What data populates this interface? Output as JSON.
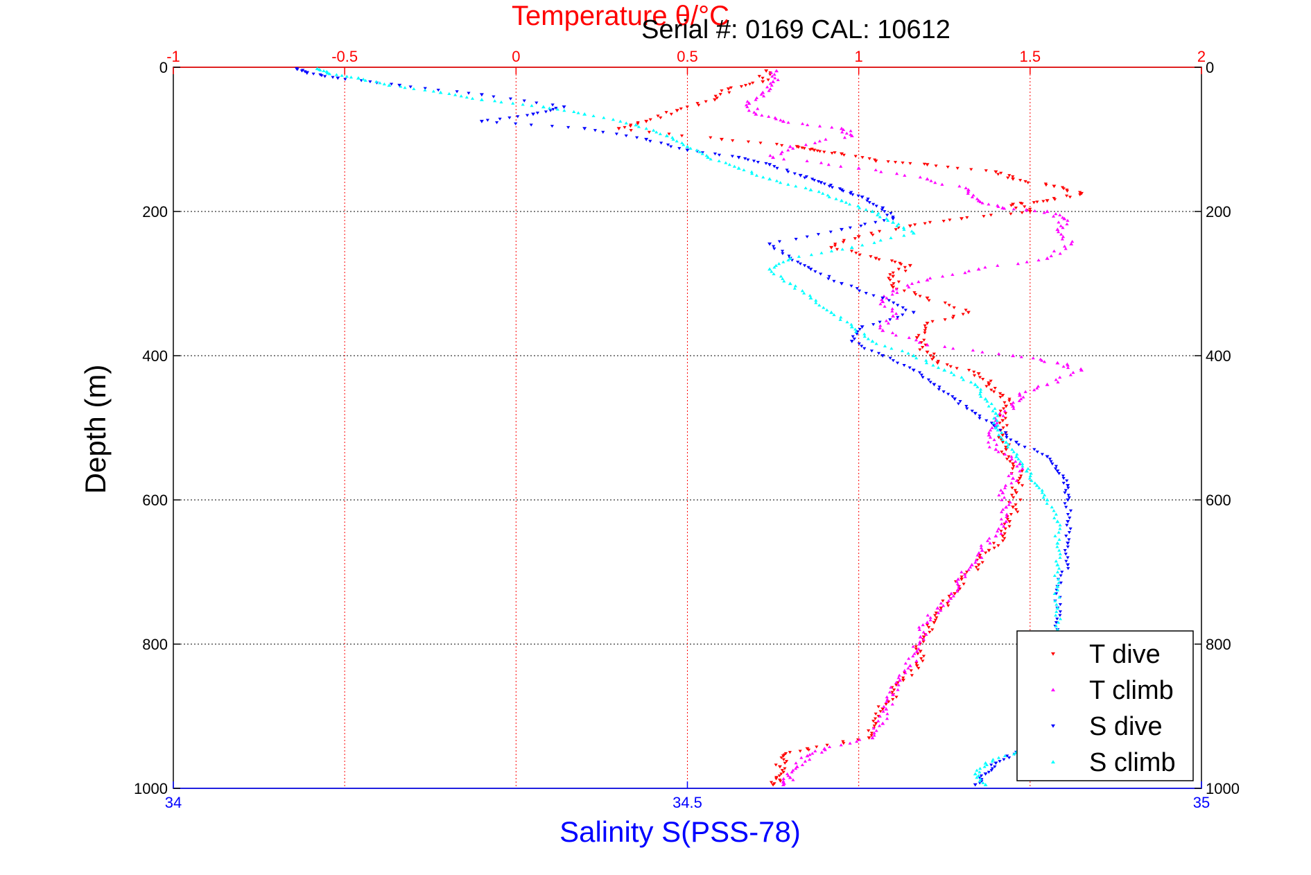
{
  "chart_data": {
    "type": "scatter",
    "title": "Temperature θ/°C",
    "subtitle": "Serial #: 0169 CAL: 10612",
    "ylabel": "Depth (m)",
    "x_top_label": "Temperature θ/°C",
    "x_bottom_label": "Salinity S(PSS-78)",
    "ylim": [
      0,
      1000
    ],
    "y_reversed": true,
    "y_ticks": [
      "0",
      "200",
      "400",
      "600",
      "800",
      "1000"
    ],
    "x_top_lim": [
      -1,
      2
    ],
    "x_top_ticks": [
      "-1",
      "-0.5",
      "0",
      "0.5",
      "1",
      "1.5",
      "2"
    ],
    "x_bottom_lim": [
      34,
      35
    ],
    "x_bottom_ticks": [
      "34",
      "34.5",
      "35"
    ],
    "grid": true,
    "legend_position": "bottom-right",
    "colors": {
      "top_axis": "#ff0000",
      "bottom_axis": "#0000ff",
      "grid": "#000000"
    },
    "series": [
      {
        "name": "T dive",
        "axis": "temperature",
        "color": "#ff0000",
        "marker": "triangle-down",
        "points": [
          [
            0.73,
            5
          ],
          [
            0.72,
            20
          ],
          [
            0.62,
            30
          ],
          [
            0.58,
            45
          ],
          [
            0.47,
            60
          ],
          [
            0.38,
            75
          ],
          [
            0.3,
            85
          ],
          [
            0.6,
            100
          ],
          [
            0.82,
            110
          ],
          [
            0.87,
            115
          ],
          [
            0.95,
            120
          ],
          [
            1.05,
            130
          ],
          [
            1.2,
            135
          ],
          [
            1.4,
            145
          ],
          [
            1.45,
            155
          ],
          [
            1.57,
            165
          ],
          [
            1.65,
            175
          ],
          [
            1.55,
            185
          ],
          [
            1.45,
            190
          ],
          [
            1.5,
            200
          ],
          [
            1.3,
            210
          ],
          [
            1.15,
            220
          ],
          [
            1.0,
            235
          ],
          [
            0.92,
            250
          ],
          [
            1.05,
            265
          ],
          [
            1.15,
            275
          ],
          [
            1.1,
            290
          ],
          [
            1.1,
            305
          ],
          [
            1.2,
            320
          ],
          [
            1.32,
            340
          ],
          [
            1.2,
            355
          ],
          [
            1.17,
            375
          ],
          [
            1.2,
            395
          ],
          [
            1.23,
            410
          ],
          [
            1.35,
            425
          ],
          [
            1.38,
            440
          ],
          [
            1.42,
            455
          ],
          [
            1.43,
            470
          ],
          [
            1.42,
            490
          ],
          [
            1.42,
            510
          ],
          [
            1.43,
            530
          ],
          [
            1.45,
            550
          ],
          [
            1.47,
            570
          ],
          [
            1.46,
            590
          ],
          [
            1.45,
            610
          ],
          [
            1.44,
            630
          ],
          [
            1.42,
            650
          ],
          [
            1.38,
            670
          ],
          [
            1.35,
            690
          ],
          [
            1.3,
            710
          ],
          [
            1.28,
            730
          ],
          [
            1.24,
            750
          ],
          [
            1.22,
            770
          ],
          [
            1.19,
            790
          ],
          [
            1.18,
            810
          ],
          [
            1.17,
            830
          ],
          [
            1.13,
            850
          ],
          [
            1.1,
            870
          ],
          [
            1.07,
            890
          ],
          [
            1.05,
            910
          ],
          [
            1.03,
            930
          ],
          [
            0.85,
            945
          ],
          [
            0.78,
            955
          ],
          [
            0.77,
            970
          ],
          [
            0.76,
            985
          ],
          [
            0.75,
            995
          ]
        ]
      },
      {
        "name": "T climb",
        "axis": "temperature",
        "color": "#ff00ff",
        "marker": "triangle-up",
        "points": [
          [
            0.76,
            5
          ],
          [
            0.75,
            20
          ],
          [
            0.72,
            35
          ],
          [
            0.68,
            50
          ],
          [
            0.7,
            65
          ],
          [
            0.78,
            75
          ],
          [
            0.95,
            85
          ],
          [
            0.98,
            95
          ],
          [
            0.8,
            110
          ],
          [
            0.75,
            125
          ],
          [
            1.0,
            140
          ],
          [
            1.2,
            155
          ],
          [
            1.32,
            170
          ],
          [
            1.35,
            185
          ],
          [
            1.42,
            195
          ],
          [
            1.55,
            200
          ],
          [
            1.6,
            210
          ],
          [
            1.58,
            225
          ],
          [
            1.62,
            245
          ],
          [
            1.55,
            265
          ],
          [
            1.35,
            280
          ],
          [
            1.2,
            295
          ],
          [
            1.1,
            310
          ],
          [
            1.07,
            325
          ],
          [
            1.1,
            345
          ],
          [
            1.07,
            365
          ],
          [
            1.2,
            385
          ],
          [
            1.45,
            400
          ],
          [
            1.58,
            410
          ],
          [
            1.65,
            420
          ],
          [
            1.55,
            440
          ],
          [
            1.47,
            455
          ],
          [
            1.45,
            470
          ],
          [
            1.4,
            490
          ],
          [
            1.38,
            510
          ],
          [
            1.4,
            530
          ],
          [
            1.47,
            550
          ],
          [
            1.45,
            570
          ],
          [
            1.42,
            590
          ],
          [
            1.43,
            610
          ],
          [
            1.43,
            630
          ],
          [
            1.4,
            650
          ],
          [
            1.36,
            670
          ],
          [
            1.33,
            690
          ],
          [
            1.29,
            710
          ],
          [
            1.27,
            730
          ],
          [
            1.23,
            750
          ],
          [
            1.2,
            770
          ],
          [
            1.18,
            790
          ],
          [
            1.17,
            810
          ],
          [
            1.15,
            830
          ],
          [
            1.12,
            850
          ],
          [
            1.1,
            870
          ],
          [
            1.08,
            890
          ],
          [
            1.07,
            910
          ],
          [
            1.04,
            930
          ],
          [
            0.9,
            945
          ],
          [
            0.85,
            955
          ],
          [
            0.82,
            970
          ],
          [
            0.8,
            985
          ],
          [
            0.78,
            995
          ]
        ]
      },
      {
        "name": "S dive",
        "axis": "salinity",
        "color": "#0000ff",
        "marker": "triangle-down",
        "points": [
          [
            34.12,
            2
          ],
          [
            34.13,
            8
          ],
          [
            34.16,
            15
          ],
          [
            34.22,
            25
          ],
          [
            34.3,
            38
          ],
          [
            34.38,
            55
          ],
          [
            34.35,
            65
          ],
          [
            34.3,
            75
          ],
          [
            34.4,
            85
          ],
          [
            34.46,
            100
          ],
          [
            34.5,
            115
          ],
          [
            34.55,
            125
          ],
          [
            34.58,
            135
          ],
          [
            34.61,
            150
          ],
          [
            34.63,
            160
          ],
          [
            34.65,
            170
          ],
          [
            34.67,
            180
          ],
          [
            34.69,
            195
          ],
          [
            34.7,
            210
          ],
          [
            34.65,
            225
          ],
          [
            34.58,
            245
          ],
          [
            34.6,
            265
          ],
          [
            34.62,
            280
          ],
          [
            34.65,
            300
          ],
          [
            34.69,
            320
          ],
          [
            34.72,
            340
          ],
          [
            34.67,
            360
          ],
          [
            34.66,
            380
          ],
          [
            34.69,
            400
          ],
          [
            34.72,
            420
          ],
          [
            34.74,
            440
          ],
          [
            34.76,
            460
          ],
          [
            34.78,
            480
          ],
          [
            34.8,
            500
          ],
          [
            34.82,
            520
          ],
          [
            34.85,
            540
          ],
          [
            34.86,
            560
          ],
          [
            34.87,
            580
          ],
          [
            34.87,
            600
          ],
          [
            34.87,
            630
          ],
          [
            34.87,
            660
          ],
          [
            34.87,
            690
          ],
          [
            34.86,
            720
          ],
          [
            34.86,
            750
          ],
          [
            34.86,
            780
          ],
          [
            34.86,
            810
          ],
          [
            34.85,
            840
          ],
          [
            34.85,
            870
          ],
          [
            34.85,
            900
          ],
          [
            34.84,
            930
          ],
          [
            34.82,
            950
          ],
          [
            34.8,
            965
          ],
          [
            34.79,
            980
          ],
          [
            34.78,
            995
          ]
        ]
      },
      {
        "name": "S climb",
        "axis": "salinity",
        "color": "#00ffff",
        "marker": "triangle-up",
        "points": [
          [
            34.14,
            2
          ],
          [
            34.15,
            8
          ],
          [
            34.18,
            15
          ],
          [
            34.21,
            25
          ],
          [
            34.26,
            35
          ],
          [
            34.3,
            45
          ],
          [
            34.36,
            55
          ],
          [
            34.4,
            65
          ],
          [
            34.45,
            80
          ],
          [
            34.48,
            95
          ],
          [
            34.5,
            110
          ],
          [
            34.52,
            125
          ],
          [
            34.55,
            140
          ],
          [
            34.58,
            155
          ],
          [
            34.62,
            170
          ],
          [
            34.65,
            185
          ],
          [
            34.68,
            200
          ],
          [
            34.7,
            215
          ],
          [
            34.72,
            230
          ],
          [
            34.66,
            250
          ],
          [
            34.6,
            265
          ],
          [
            34.58,
            280
          ],
          [
            34.6,
            300
          ],
          [
            34.62,
            320
          ],
          [
            34.64,
            340
          ],
          [
            34.66,
            360
          ],
          [
            34.68,
            380
          ],
          [
            34.72,
            400
          ],
          [
            34.75,
            420
          ],
          [
            34.78,
            440
          ],
          [
            34.79,
            460
          ],
          [
            34.8,
            480
          ],
          [
            34.8,
            500
          ],
          [
            34.81,
            520
          ],
          [
            34.82,
            540
          ],
          [
            34.83,
            560
          ],
          [
            34.84,
            580
          ],
          [
            34.85,
            600
          ],
          [
            34.86,
            630
          ],
          [
            34.86,
            660
          ],
          [
            34.86,
            690
          ],
          [
            34.86,
            720
          ],
          [
            34.86,
            750
          ],
          [
            34.86,
            780
          ],
          [
            34.86,
            810
          ],
          [
            34.85,
            840
          ],
          [
            34.85,
            870
          ],
          [
            34.84,
            900
          ],
          [
            34.84,
            930
          ],
          [
            34.82,
            950
          ],
          [
            34.79,
            965
          ],
          [
            34.78,
            980
          ],
          [
            34.79,
            995
          ]
        ]
      }
    ]
  }
}
